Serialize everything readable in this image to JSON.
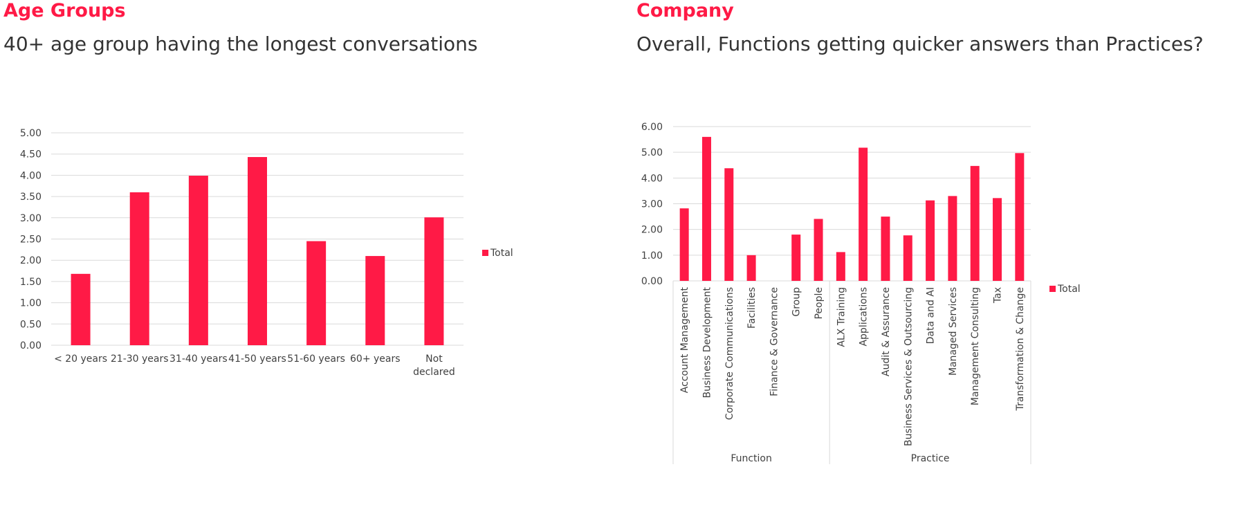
{
  "colors": {
    "accent": "#ff1a46",
    "bar": "#ff1a46",
    "grid": "#d9d9d9",
    "text": "#404040"
  },
  "left": {
    "section_title": "Age Groups",
    "subtitle": "40+ age group having the longest conversations"
  },
  "right": {
    "section_title": "Company",
    "subtitle": "Overall, Functions getting quicker answers than Practices?"
  },
  "chart_data": [
    {
      "type": "bar",
      "categories": [
        "< 20 years",
        "21-30 years",
        "31-40 years",
        "41-50 years",
        "51-60 years",
        "60+ years",
        "Not declared"
      ],
      "series": [
        {
          "name": "Total",
          "values": [
            1.68,
            3.6,
            3.99,
            4.43,
            2.45,
            2.1,
            3.01
          ]
        }
      ],
      "ylim": [
        0,
        5
      ],
      "y_ticks": [
        "0.00",
        "0.50",
        "1.00",
        "1.50",
        "2.00",
        "2.50",
        "3.00",
        "3.50",
        "4.00",
        "4.50",
        "5.00"
      ],
      "grid": true,
      "legend": "right"
    },
    {
      "type": "bar",
      "categories": [
        "Account Management",
        "Business Development",
        "Corporate Communications",
        "Facilities",
        "Finance & Governance",
        "Group",
        "People",
        "ALX Training",
        "Applications",
        "Audit & Assurance",
        "Business Services & Outsourcing",
        "Data and AI",
        "Managed Services",
        "Management Consulting",
        "Tax",
        "Transformation & Change"
      ],
      "groups": [
        {
          "name": "Function",
          "count": 7
        },
        {
          "name": "Practice",
          "count": 9
        }
      ],
      "series": [
        {
          "name": "Total",
          "values": [
            2.82,
            5.6,
            4.38,
            1.0,
            0,
            1.8,
            2.41,
            1.12,
            5.18,
            2.5,
            1.77,
            3.13,
            3.3,
            4.47,
            3.22,
            4.97
          ]
        }
      ],
      "ylim": [
        0,
        6
      ],
      "y_ticks": [
        "0.00",
        "1.00",
        "2.00",
        "3.00",
        "4.00",
        "5.00",
        "6.00"
      ],
      "grid": true,
      "legend": "right"
    }
  ]
}
